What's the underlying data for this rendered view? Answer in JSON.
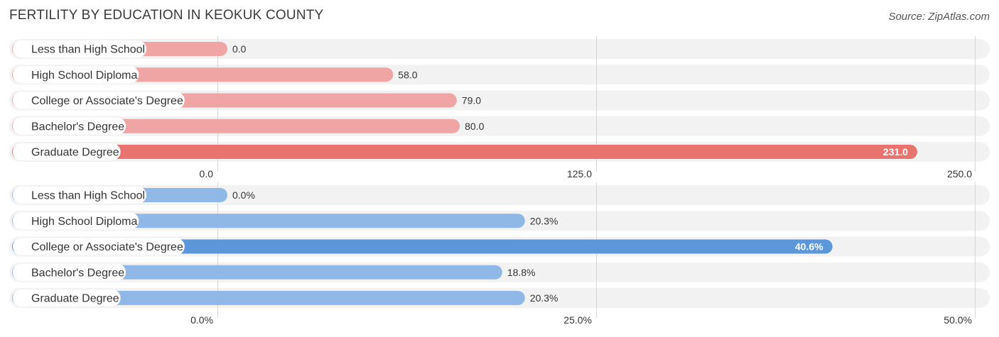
{
  "header": {
    "title": "FERTILITY BY EDUCATION IN KEOKUK COUNTY",
    "source": "Source: ZipAtlas.com"
  },
  "chart_data": [
    {
      "type": "bar",
      "orientation": "horizontal",
      "categories": [
        "Less than High School",
        "High School Diploma",
        "College or Associate's Degree",
        "Bachelor's Degree",
        "Graduate Degree"
      ],
      "values": [
        0.0,
        58.0,
        79.0,
        80.0,
        231.0
      ],
      "value_labels": [
        "0.0",
        "58.0",
        "79.0",
        "80.0",
        "231.0"
      ],
      "xlim": [
        0,
        250
      ],
      "ticks": [
        0,
        125,
        250
      ],
      "tick_labels": [
        "0.0",
        "125.0",
        "250.0"
      ],
      "colors": {
        "bar": "#f0a5a5",
        "highlight": "#e8736f"
      },
      "highlight_index": 4,
      "grid": true
    },
    {
      "type": "bar",
      "orientation": "horizontal",
      "categories": [
        "Less than High School",
        "High School Diploma",
        "College or Associate's Degree",
        "Bachelor's Degree",
        "Graduate Degree"
      ],
      "values": [
        0.0,
        20.3,
        40.6,
        18.8,
        20.3
      ],
      "value_labels": [
        "0.0%",
        "20.3%",
        "40.6%",
        "18.8%",
        "20.3%"
      ],
      "xlim": [
        0,
        50
      ],
      "ticks": [
        0,
        25,
        50
      ],
      "tick_labels": [
        "0.0%",
        "25.0%",
        "50.0%"
      ],
      "colors": {
        "bar": "#8fb8e6",
        "highlight": "#5b97d9"
      },
      "highlight_index": 2,
      "grid": true
    }
  ]
}
